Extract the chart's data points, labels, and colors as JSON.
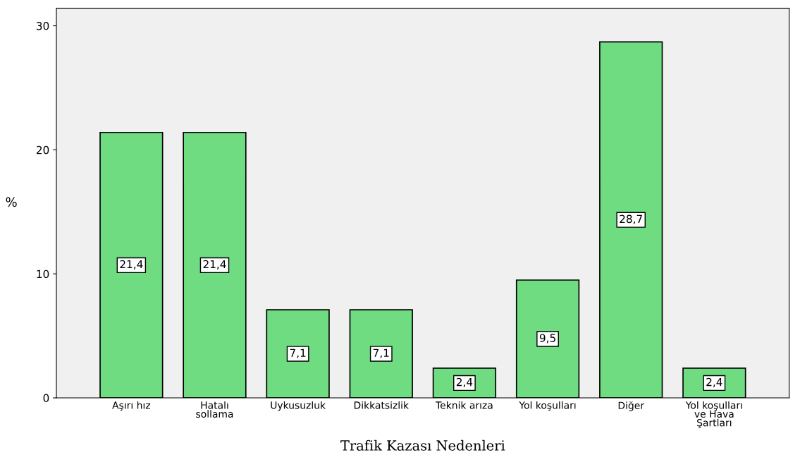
{
  "chart_data": {
    "type": "bar",
    "xlabel": "Trafik Kazası Nedenleri",
    "ylabel": "%",
    "categories": [
      "Aşırı hız",
      "Hatalı\nsollama",
      "Uykusuzluk",
      "Dikkatsizlik",
      "Teknik arıza",
      "Yol koşulları",
      "Diğer",
      "Yol koşulları\nve Hava\nŞartları"
    ],
    "values": [
      21.4,
      21.4,
      7.1,
      7.1,
      2.4,
      9.5,
      28.7,
      2.4
    ],
    "value_labels": [
      "21,4",
      "21,4",
      "7,1",
      "7,1",
      "2,4",
      "9,5",
      "28,7",
      "2,4"
    ],
    "color": "#6fdc82",
    "ylim": [
      0,
      31.4
    ],
    "yticks": [
      0,
      10,
      20,
      30
    ],
    "grid": false,
    "legend": false
  }
}
